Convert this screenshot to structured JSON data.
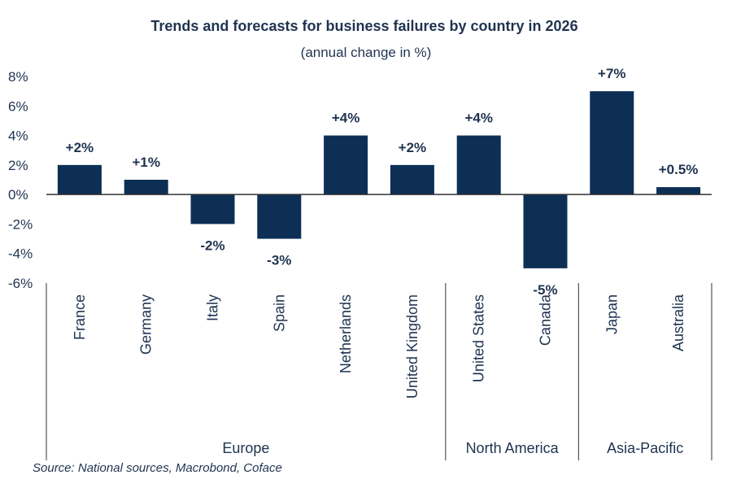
{
  "chart_data": {
    "type": "bar",
    "title": "Trends and forecasts for business failures by country in 2026",
    "subtitle": "(annual change in %)",
    "categories": [
      "France",
      "Germany",
      "Italy",
      "Spain",
      "Netherlands",
      "United Kingdom",
      "United States",
      "Canada",
      "Japan",
      "Australia"
    ],
    "values": [
      2,
      1,
      -2,
      -3,
      4,
      2,
      4,
      -5,
      7,
      0.5
    ],
    "data_labels": [
      "+2%",
      "+1%",
      "-2%",
      "-3%",
      "+4%",
      "+2%",
      "+4%",
      "-5%",
      "+7%",
      "+0.5%"
    ],
    "groups": [
      {
        "name": "Europe",
        "count": 6
      },
      {
        "name": "North America",
        "count": 2
      },
      {
        "name": "Asia-Pacific",
        "count": 2
      }
    ],
    "ylim": [
      -6,
      8
    ],
    "yticks": [
      8,
      6,
      4,
      2,
      0,
      -2,
      -4,
      -6
    ],
    "ytick_labels": [
      "8%",
      "6%",
      "4%",
      "2%",
      "0%",
      "-2%",
      "-4%",
      "-6%"
    ],
    "grid": false,
    "legend": "none",
    "bar_color": "#0d2f55",
    "source": "Source: National sources, Macrobond, Coface"
  }
}
